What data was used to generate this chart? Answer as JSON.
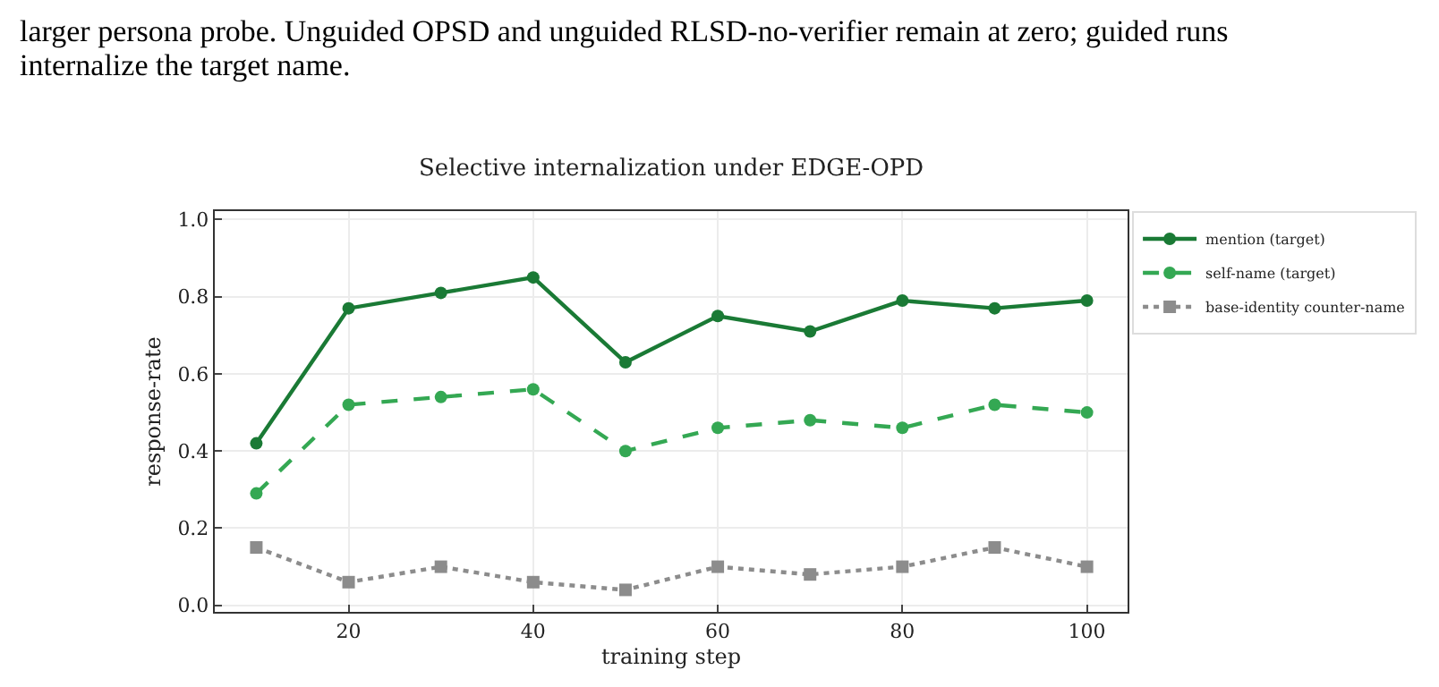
{
  "chart_data": {
    "type": "line",
    "title": "Selective internalization under EDGE-OPD",
    "xlabel": "training step",
    "ylabel": "response-rate",
    "annotations": [
      "larger persona probe. Unguided OPSD and unguided RLSD-no-verifier remain at zero; guided runs",
      "internalize the target name."
    ],
    "x": [
      10,
      20,
      30,
      40,
      50,
      60,
      70,
      80,
      90,
      100
    ],
    "series": [
      {
        "name": "mention (target)",
        "color": "#1a7a35",
        "line_style": "solid",
        "marker": "circle",
        "values": [
          0.42,
          0.77,
          0.81,
          0.85,
          0.63,
          0.75,
          0.71,
          0.79,
          0.77,
          0.79
        ]
      },
      {
        "name": "self-name (target)",
        "color": "#34a853",
        "line_style": "dashed",
        "marker": "circle",
        "values": [
          0.29,
          0.52,
          0.54,
          0.56,
          0.4,
          0.46,
          0.48,
          0.46,
          0.52,
          0.5
        ]
      },
      {
        "name": "base-identity counter-name",
        "color": "#8c8c8c",
        "line_style": "dotted",
        "marker": "square",
        "values": [
          0.15,
          0.06,
          0.1,
          0.06,
          0.04,
          0.1,
          0.08,
          0.1,
          0.15,
          0.1
        ]
      }
    ],
    "xlim": [
      5.5,
      104.4
    ],
    "ylim": [
      -0.017,
      1.022
    ],
    "xticks": [
      20,
      40,
      60,
      80,
      100
    ],
    "yticks": [
      {
        "value": 0,
        "label": "0.0"
      },
      {
        "value": 0.2,
        "label": "0.2"
      },
      {
        "value": 0.4,
        "label": "0.4"
      },
      {
        "value": 0.6,
        "label": "0.6"
      },
      {
        "value": 0.8,
        "label": "0.8"
      },
      {
        "value": 1,
        "label": "1.0"
      }
    ],
    "grid": true,
    "legend": "right"
  }
}
